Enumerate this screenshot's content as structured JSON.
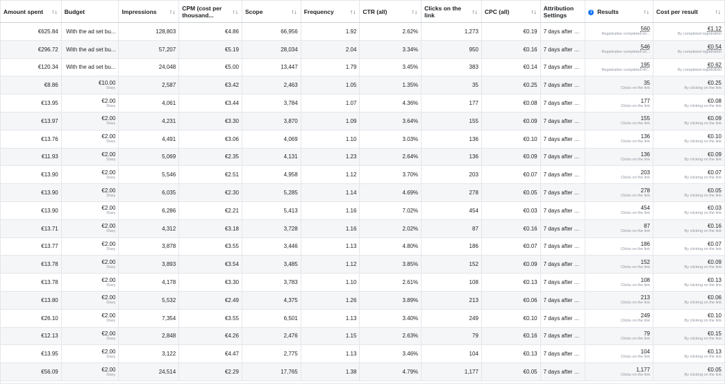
{
  "columns": [
    {
      "label": "Amount spent",
      "sort": "↑↓"
    },
    {
      "label": "Budget",
      "sort": ""
    },
    {
      "label": "Impressions",
      "sort": "↑↓"
    },
    {
      "label": "CPM (cost per thousand...",
      "sort": "↑↓"
    },
    {
      "label": "Scope",
      "sort": "↑↓"
    },
    {
      "label": "Frequency",
      "sort": "↑↓"
    },
    {
      "label": "CTR (all)",
      "sort": "↑↓"
    },
    {
      "label": "Clicks on the link",
      "sort": "↑↓"
    },
    {
      "label": "CPC (all)",
      "sort": "↑↓"
    },
    {
      "label": "Attribution Settings",
      "sort": ""
    },
    {
      "label": "Results",
      "sort": "↑↓",
      "info_icon": "i"
    },
    {
      "label": "Cost per result",
      "sort": "↑↓"
    }
  ],
  "rows": [
    {
      "spent": "€625.84",
      "budget": "With the ad set bu...",
      "budget_sub": "",
      "impressions": "128,803",
      "cpm": "€4.86",
      "scope": "66,956",
      "frequency": "1.92",
      "ctr": "2.62%",
      "clicks": "1,273",
      "cpc": "€0.19",
      "attribution": "7 days after cli...",
      "results": "560",
      "results_sub": "Registration completed on...",
      "cost": "€1.12",
      "cost_sub": "By completed registration"
    },
    {
      "spent": "€296.72",
      "budget": "With the ad set bu...",
      "budget_sub": "",
      "impressions": "57,207",
      "cpm": "€5.19",
      "scope": "28,034",
      "frequency": "2.04",
      "ctr": "3.34%",
      "clicks": "950",
      "cpc": "€0.16",
      "attribution": "7 days after cli...",
      "results": "546",
      "results_sub": "Registration completed on...",
      "cost": "€0.54",
      "cost_sub": "By completed registration"
    },
    {
      "spent": "€120.34",
      "budget": "With the ad set bu...",
      "budget_sub": "",
      "impressions": "24,048",
      "cpm": "€5.00",
      "scope": "13,447",
      "frequency": "1.79",
      "ctr": "3.45%",
      "clicks": "383",
      "cpc": "€0.14",
      "attribution": "7 days after cli...",
      "results": "195",
      "results_sub": "Registration completed on...",
      "cost": "€0.62",
      "cost_sub": "By completed registration"
    },
    {
      "spent": "€8.86",
      "budget": "€10.00",
      "budget_sub": "Diary",
      "impressions": "2,587",
      "cpm": "€3.42",
      "scope": "2,463",
      "frequency": "1.05",
      "ctr": "1.35%",
      "clicks": "35",
      "cpc": "€0.25",
      "attribution": "7 days after cli...",
      "results": "35",
      "results_sub": "Clicks on the link",
      "cost": "€0.25",
      "cost_sub": "By clicking on the link"
    },
    {
      "spent": "€13.95",
      "budget": "€2.00",
      "budget_sub": "Diary",
      "impressions": "4,061",
      "cpm": "€3.44",
      "scope": "3,784",
      "frequency": "1.07",
      "ctr": "4.36%",
      "clicks": "177",
      "cpc": "€0.08",
      "attribution": "7 days after cli...",
      "results": "177",
      "results_sub": "Clicks on the link",
      "cost": "€0.08",
      "cost_sub": "By clicking on the link"
    },
    {
      "spent": "€13.97",
      "budget": "€2.00",
      "budget_sub": "Diary",
      "impressions": "4,231",
      "cpm": "€3.30",
      "scope": "3,870",
      "frequency": "1.09",
      "ctr": "3.64%",
      "clicks": "155",
      "cpc": "€0.09",
      "attribution": "7 days after cli...",
      "results": "155",
      "results_sub": "Clicks on the link",
      "cost": "€0.09",
      "cost_sub": "By clicking on the link"
    },
    {
      "spent": "€13.76",
      "budget": "€2.00",
      "budget_sub": "Diary",
      "impressions": "4,491",
      "cpm": "€3.06",
      "scope": "4,069",
      "frequency": "1.10",
      "ctr": "3.03%",
      "clicks": "136",
      "cpc": "€0.10",
      "attribution": "7 days after cli...",
      "results": "136",
      "results_sub": "Clicks on the link",
      "cost": "€0.10",
      "cost_sub": "By clicking on the link"
    },
    {
      "spent": "€11.93",
      "budget": "€2.00",
      "budget_sub": "Diary",
      "impressions": "5,069",
      "cpm": "€2.35",
      "scope": "4,131",
      "frequency": "1.23",
      "ctr": "2.64%",
      "clicks": "136",
      "cpc": "€0.09",
      "attribution": "7 days after cli...",
      "results": "136",
      "results_sub": "Clicks on the link",
      "cost": "€0.09",
      "cost_sub": "By clicking on the link"
    },
    {
      "spent": "€13.90",
      "budget": "€2.00",
      "budget_sub": "Diary",
      "impressions": "5,546",
      "cpm": "€2.51",
      "scope": "4,958",
      "frequency": "1.12",
      "ctr": "3.70%",
      "clicks": "203",
      "cpc": "€0.07",
      "attribution": "7 days after cli...",
      "results": "203",
      "results_sub": "Clicks on the link",
      "cost": "€0.07",
      "cost_sub": "By clicking on the link"
    },
    {
      "spent": "€13.90",
      "budget": "€2.00",
      "budget_sub": "Diary",
      "impressions": "6,035",
      "cpm": "€2.30",
      "scope": "5,285",
      "frequency": "1.14",
      "ctr": "4.69%",
      "clicks": "278",
      "cpc": "€0.05",
      "attribution": "7 days after cli...",
      "results": "278",
      "results_sub": "Clicks on the link",
      "cost": "€0.05",
      "cost_sub": "By clicking on the link"
    },
    {
      "spent": "€13.90",
      "budget": "€2.00",
      "budget_sub": "Diary",
      "impressions": "6,286",
      "cpm": "€2.21",
      "scope": "5,413",
      "frequency": "1.16",
      "ctr": "7.02%",
      "clicks": "454",
      "cpc": "€0.03",
      "attribution": "7 days after cli...",
      "results": "454",
      "results_sub": "Clicks on the link",
      "cost": "€0.03",
      "cost_sub": "By clicking on the link"
    },
    {
      "spent": "€13.71",
      "budget": "€2.00",
      "budget_sub": "Diary",
      "impressions": "4,312",
      "cpm": "€3.18",
      "scope": "3,728",
      "frequency": "1.16",
      "ctr": "2.02%",
      "clicks": "87",
      "cpc": "€0.16",
      "attribution": "7 days after cli...",
      "results": "87",
      "results_sub": "Clicks on the link",
      "cost": "€0.16",
      "cost_sub": "By clicking on the link"
    },
    {
      "spent": "€13.77",
      "budget": "€2.00",
      "budget_sub": "Diary",
      "impressions": "3,878",
      "cpm": "€3.55",
      "scope": "3,446",
      "frequency": "1.13",
      "ctr": "4.80%",
      "clicks": "186",
      "cpc": "€0.07",
      "attribution": "7 days after cli...",
      "results": "186",
      "results_sub": "Clicks on the link",
      "cost": "€0.07",
      "cost_sub": "By clicking on the link"
    },
    {
      "spent": "€13.78",
      "budget": "€2.00",
      "budget_sub": "Diary",
      "impressions": "3,893",
      "cpm": "€3.54",
      "scope": "3,485",
      "frequency": "1.12",
      "ctr": "3.85%",
      "clicks": "152",
      "cpc": "€0.09",
      "attribution": "7 days after cli...",
      "results": "152",
      "results_sub": "Clicks on the link",
      "cost": "€0.09",
      "cost_sub": "By clicking on the link"
    },
    {
      "spent": "€13.78",
      "budget": "€2.00",
      "budget_sub": "Diary",
      "impressions": "4,178",
      "cpm": "€3.30",
      "scope": "3,783",
      "frequency": "1.10",
      "ctr": "2.61%",
      "clicks": "108",
      "cpc": "€0.13",
      "attribution": "7 days after cli...",
      "results": "108",
      "results_sub": "Clicks on the link",
      "cost": "€0.13",
      "cost_sub": "By clicking on the link"
    },
    {
      "spent": "€13.80",
      "budget": "€2.00",
      "budget_sub": "Diary",
      "impressions": "5,532",
      "cpm": "€2.49",
      "scope": "4,375",
      "frequency": "1.26",
      "ctr": "3.89%",
      "clicks": "213",
      "cpc": "€0.06",
      "attribution": "7 days after cli...",
      "results": "213",
      "results_sub": "Clicks on the link",
      "cost": "€0.06",
      "cost_sub": "By clicking on the link"
    },
    {
      "spent": "€26.10",
      "budget": "€2.00",
      "budget_sub": "Diary",
      "impressions": "7,354",
      "cpm": "€3.55",
      "scope": "6,501",
      "frequency": "1.13",
      "ctr": "3.40%",
      "clicks": "249",
      "cpc": "€0.10",
      "attribution": "7 days after cli...",
      "results": "249",
      "results_sub": "Clicks on the link",
      "cost": "€0.10",
      "cost_sub": "By clicking on the link"
    },
    {
      "spent": "€12.13",
      "budget": "€2.00",
      "budget_sub": "Diary",
      "impressions": "2,848",
      "cpm": "€4.26",
      "scope": "2,476",
      "frequency": "1.15",
      "ctr": "2.63%",
      "clicks": "79",
      "cpc": "€0.16",
      "attribution": "7 days after cli...",
      "results": "79",
      "results_sub": "Clicks on the link",
      "cost": "€0.15",
      "cost_sub": "By clicking on the link"
    },
    {
      "spent": "€13.95",
      "budget": "€2.00",
      "budget_sub": "Diary",
      "impressions": "3,122",
      "cpm": "€4.47",
      "scope": "2,775",
      "frequency": "1.13",
      "ctr": "3.46%",
      "clicks": "104",
      "cpc": "€0.13",
      "attribution": "7 days after cli...",
      "results": "104",
      "results_sub": "Clicks on the link",
      "cost": "€0.13",
      "cost_sub": "By clicking on the link"
    },
    {
      "spent": "€56.09",
      "budget": "€2.00",
      "budget_sub": "Diary",
      "impressions": "24,514",
      "cpm": "€2.29",
      "scope": "17,765",
      "frequency": "1.38",
      "ctr": "4.79%",
      "clicks": "1,177",
      "cpc": "€0.05",
      "attribution": "7 days after cli...",
      "results": "1,177",
      "results_sub": "Clicks on the link",
      "cost": "€0.05",
      "cost_sub": "By clicking on the link"
    }
  ],
  "colors": {
    "accent": "#1877f2",
    "border": "#e4e6eb",
    "zebra": "#f5f6f7",
    "subtext": "#8d949e"
  }
}
